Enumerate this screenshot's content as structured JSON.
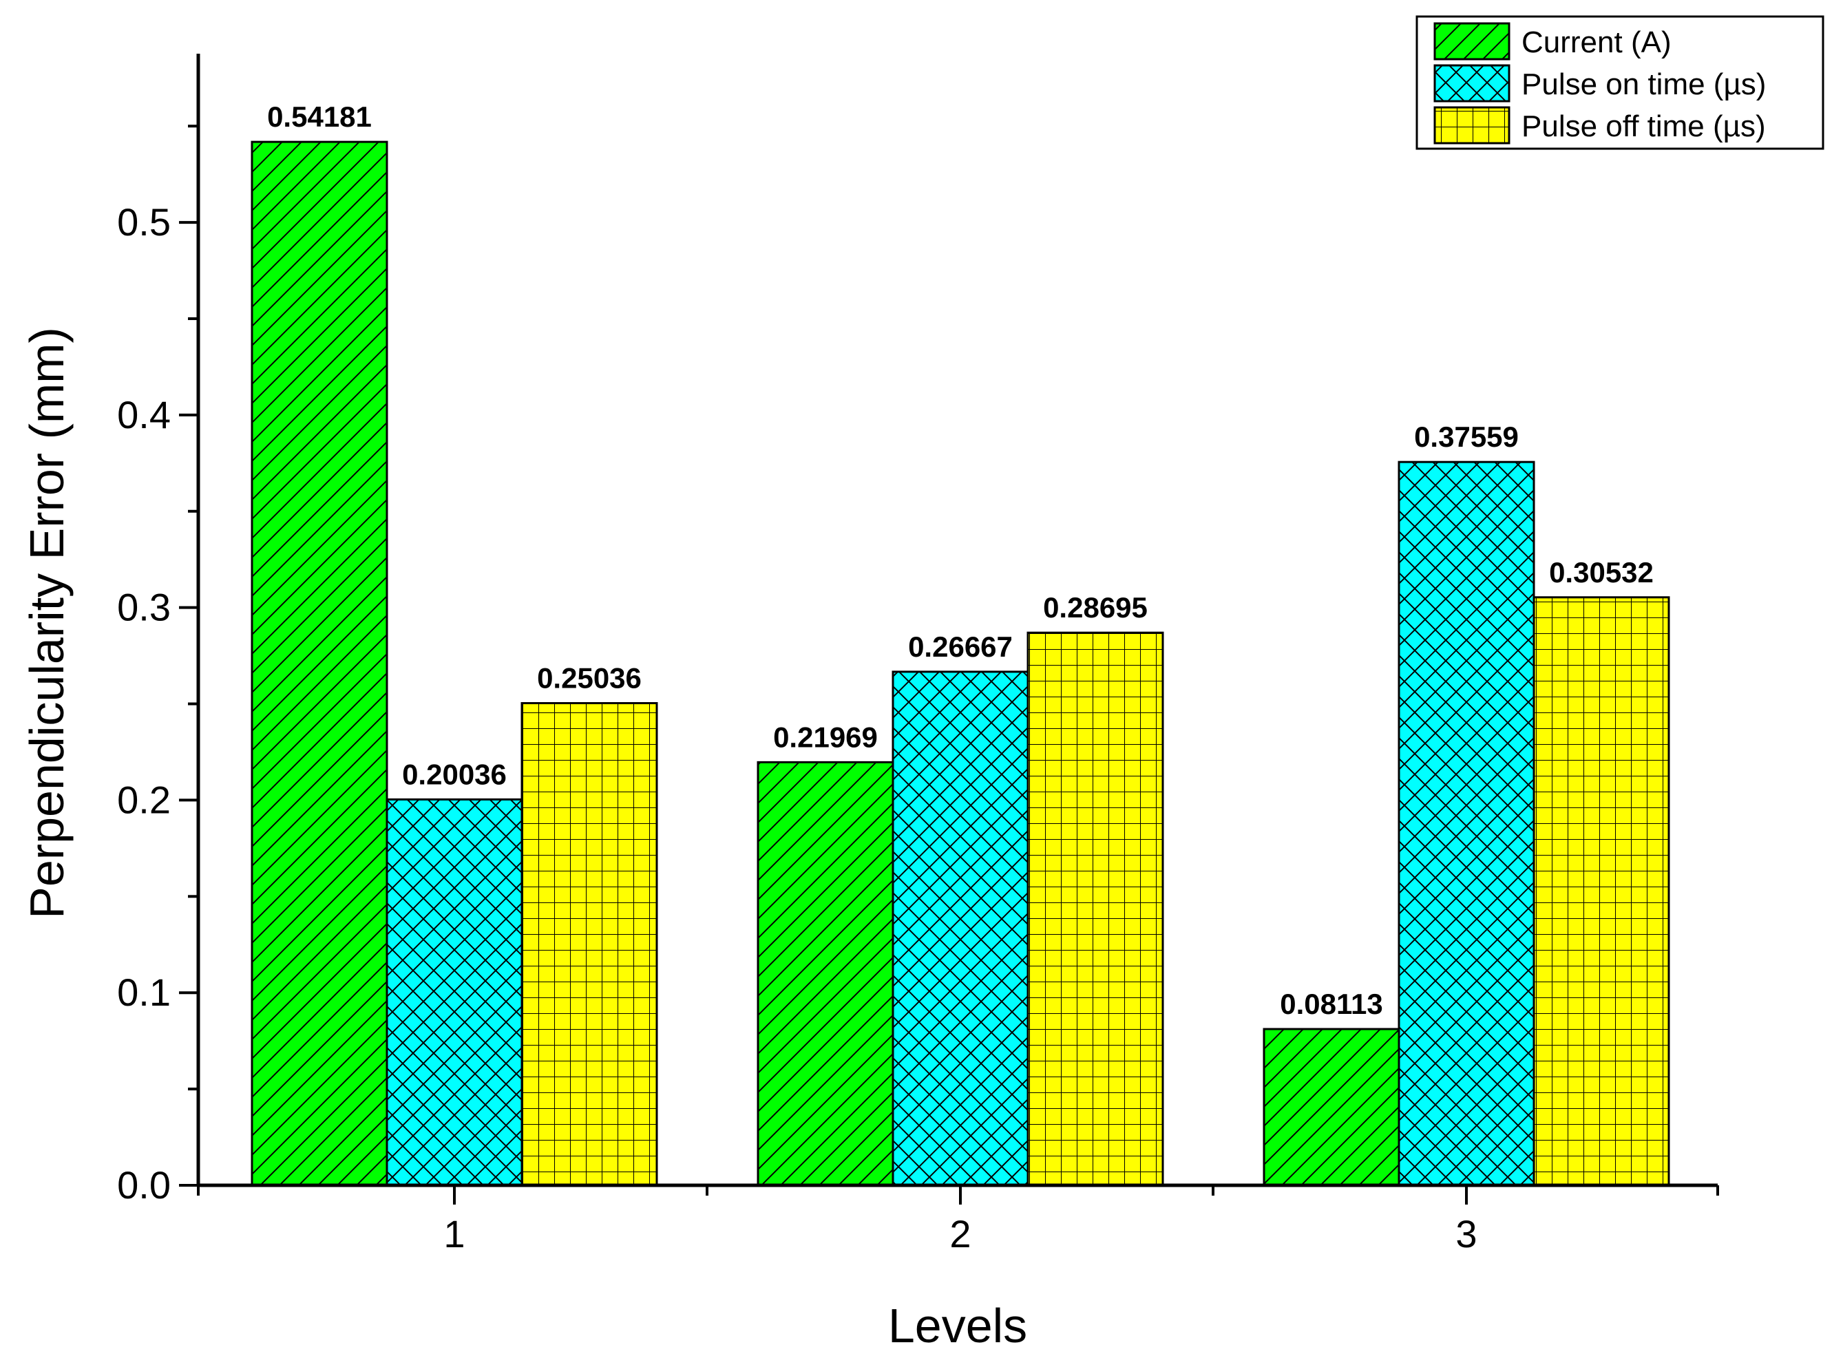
{
  "chart_data": {
    "type": "bar",
    "title": "",
    "xlabel": "Levels",
    "ylabel": "Perpendicularity Error (mm)",
    "categories": [
      "1",
      "2",
      "3"
    ],
    "ylim": [
      0,
      0.5876
    ],
    "yticks": [
      "0.0",
      "0.1",
      "0.2",
      "0.3",
      "0.4",
      "0.5"
    ],
    "series": [
      {
        "name": "Current (A)",
        "values": [
          0.54181,
          0.21969,
          0.08113
        ],
        "labels": [
          "0.54181",
          "0.21969",
          "0.08113"
        ],
        "color": "#00ff00",
        "pattern": "diagonal"
      },
      {
        "name": "Pulse on time (µs)",
        "values": [
          0.20036,
          0.26667,
          0.37559
        ],
        "labels": [
          "0.20036",
          "0.26667",
          "0.37559"
        ],
        "color": "#00ffff",
        "pattern": "crosshatch"
      },
      {
        "name": "Pulse off time (µs)",
        "values": [
          0.25036,
          0.28695,
          0.30532
        ],
        "labels": [
          "0.25036",
          "0.28695",
          "0.30532"
        ],
        "color": "#ffff00",
        "pattern": "grid"
      }
    ],
    "legend_position": "top-right",
    "grid": false
  }
}
